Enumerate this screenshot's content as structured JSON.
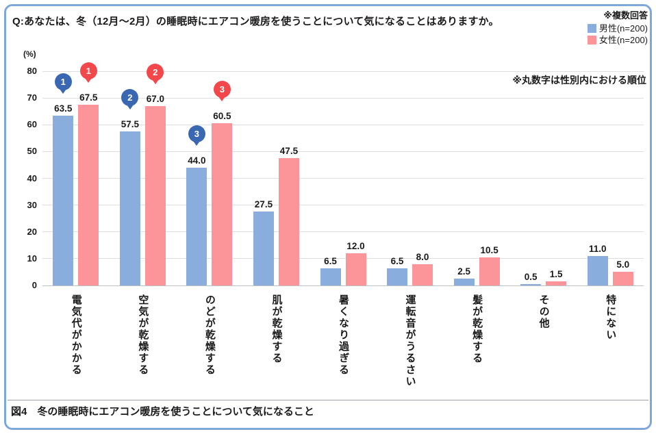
{
  "header": {
    "title": "Q:あなたは、冬（12月～2月）の睡眠時にエアコン暖房を使うことについて気になることはありますか。"
  },
  "legend": {
    "multi_note": "※複数回答",
    "male_label": "男性(n=200)",
    "female_label": "女性(n=200)"
  },
  "rank_note": "※丸数字は性別内における順位",
  "caption": "図4　冬の睡眠時にエアコン暖房を使うことについて気になること",
  "colors": {
    "frame_border": "#7FA8DA",
    "male_bar": "#89AEDE",
    "female_bar": "#FB959A",
    "male_badge": "#3A67B2",
    "female_badge": "#F2474B",
    "gridline": "#DDDDE2"
  },
  "chart_data": {
    "type": "bar",
    "title": "冬の睡眠時にエアコン暖房を使うことについて気になること",
    "unit_label": "(%)",
    "categories": [
      "電気代がかかる",
      "空気が乾燥する",
      "のどが乾燥する",
      "肌が乾燥する",
      "暑くなり過ぎる",
      "運転音がうるさい",
      "髪が乾燥する",
      "その他",
      "特にない"
    ],
    "series": [
      {
        "name": "男性(n=200)",
        "color": "#89AEDE",
        "badge_color": "#3A67B2",
        "values": [
          63.5,
          57.5,
          44.0,
          27.5,
          6.5,
          6.5,
          2.5,
          0.5,
          11.0
        ],
        "ranks": [
          1,
          2,
          3,
          null,
          null,
          null,
          null,
          null,
          null
        ]
      },
      {
        "name": "女性(n=200)",
        "color": "#FB959A",
        "badge_color": "#F2474B",
        "values": [
          67.5,
          67.0,
          60.5,
          47.5,
          12.0,
          8.0,
          10.5,
          1.5,
          5.0
        ],
        "ranks": [
          1,
          2,
          3,
          null,
          null,
          null,
          null,
          null,
          null
        ]
      }
    ],
    "ylim": [
      0,
      80
    ],
    "ytick_step": 10,
    "grid": true,
    "value_labels": true,
    "legend_position": "top-right",
    "rank_note": "※丸数字は性別内における順位"
  }
}
